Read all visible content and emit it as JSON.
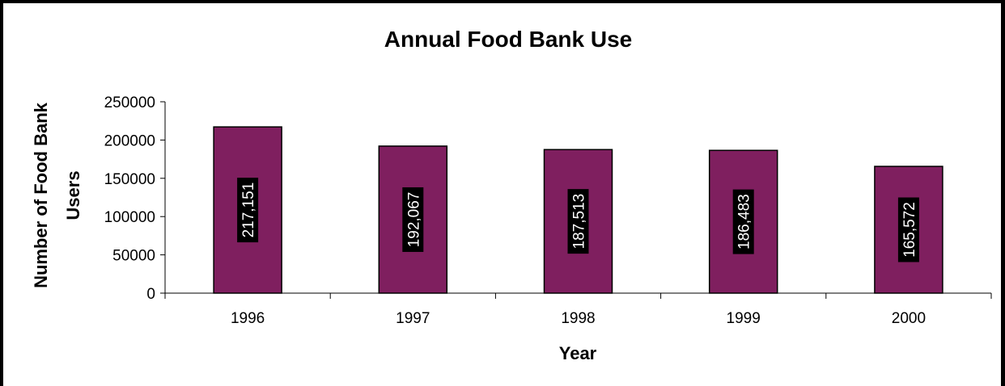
{
  "chart_data": {
    "type": "bar",
    "title": "Annual Food Bank Use",
    "xlabel": "Year",
    "ylabel_lines": [
      "Number of Food Bank",
      "Users"
    ],
    "categories": [
      "1996",
      "1997",
      "1998",
      "1999",
      "2000"
    ],
    "values": [
      217151,
      192067,
      187513,
      186483,
      165572
    ],
    "data_labels": [
      "217,151",
      "192,067",
      "187,513",
      "186,483",
      "165,572"
    ],
    "ylim": [
      0,
      250000
    ],
    "yticks": [
      "0",
      "50000",
      "100000",
      "150000",
      "200000",
      "250000"
    ],
    "ytick_values": [
      0,
      50000,
      100000,
      150000,
      200000,
      250000
    ],
    "grid": false,
    "legend": "none",
    "colors": {
      "bar_fill": "#7F1F5F",
      "bar_stroke": "#000000",
      "label_bg": "#000000",
      "label_text": "#ffffff",
      "frame": "#000000"
    }
  }
}
